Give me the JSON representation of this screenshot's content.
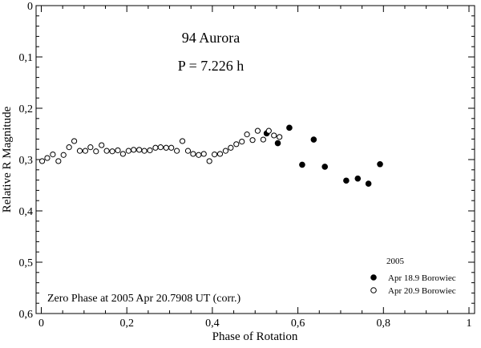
{
  "chart_data": {
    "type": "scatter",
    "annotations": {
      "object_name": "94 Aurora",
      "period": "P = 7.226 h",
      "zero_phase": "Zero Phase at 2005 Apr 20.7908 UT (corr.)"
    },
    "xlabel": "Phase of Rotation",
    "ylabel": "Relative R Magnitude",
    "xlim": [
      0,
      1
    ],
    "ylim": [
      0,
      0.6
    ],
    "y_inverted": true,
    "x_ticks": [
      {
        "value": 0,
        "label": "0"
      },
      {
        "value": 0.2,
        "label": "0,2"
      },
      {
        "value": 0.4,
        "label": "0,4"
      },
      {
        "value": 0.6,
        "label": "0,6"
      },
      {
        "value": 0.8,
        "label": "0,8"
      },
      {
        "value": 1,
        "label": "1"
      }
    ],
    "y_ticks": [
      {
        "value": 0,
        "label": "0"
      },
      {
        "value": 0.1,
        "label": "0,1"
      },
      {
        "value": 0.2,
        "label": "0,2"
      },
      {
        "value": 0.3,
        "label": "0,3"
      },
      {
        "value": 0.4,
        "label": "0,4"
      },
      {
        "value": 0.5,
        "label": "0,5"
      },
      {
        "value": 0.6,
        "label": "0,6"
      }
    ],
    "legend": {
      "title": "2005",
      "placement": "bottom-right"
    },
    "series": [
      {
        "name": "Apr 18.9 Borowiec",
        "marker": "filled-circle",
        "points": [
          [
            0.527,
            0.249
          ],
          [
            0.553,
            0.268
          ],
          [
            0.58,
            0.238
          ],
          [
            0.61,
            0.31
          ],
          [
            0.637,
            0.261
          ],
          [
            0.663,
            0.314
          ],
          [
            0.713,
            0.341
          ],
          [
            0.74,
            0.337
          ],
          [
            0.765,
            0.347
          ],
          [
            0.792,
            0.309
          ]
        ]
      },
      {
        "name": "Apr 20.9 Borowiec",
        "marker": "open-circle",
        "points": [
          [
            0.002,
            0.303
          ],
          [
            0.014,
            0.297
          ],
          [
            0.027,
            0.29
          ],
          [
            0.04,
            0.303
          ],
          [
            0.052,
            0.291
          ],
          [
            0.065,
            0.276
          ],
          [
            0.077,
            0.264
          ],
          [
            0.09,
            0.283
          ],
          [
            0.103,
            0.283
          ],
          [
            0.115,
            0.276
          ],
          [
            0.128,
            0.284
          ],
          [
            0.141,
            0.272
          ],
          [
            0.153,
            0.283
          ],
          [
            0.166,
            0.284
          ],
          [
            0.179,
            0.282
          ],
          [
            0.191,
            0.289
          ],
          [
            0.204,
            0.283
          ],
          [
            0.216,
            0.281
          ],
          [
            0.229,
            0.281
          ],
          [
            0.241,
            0.283
          ],
          [
            0.254,
            0.282
          ],
          [
            0.267,
            0.277
          ],
          [
            0.279,
            0.276
          ],
          [
            0.292,
            0.277
          ],
          [
            0.304,
            0.277
          ],
          [
            0.317,
            0.283
          ],
          [
            0.33,
            0.264
          ],
          [
            0.343,
            0.283
          ],
          [
            0.355,
            0.289
          ],
          [
            0.368,
            0.291
          ],
          [
            0.38,
            0.289
          ],
          [
            0.393,
            0.303
          ],
          [
            0.405,
            0.29
          ],
          [
            0.418,
            0.289
          ],
          [
            0.431,
            0.283
          ],
          [
            0.443,
            0.277
          ],
          [
            0.456,
            0.27
          ],
          [
            0.469,
            0.265
          ],
          [
            0.481,
            0.251
          ],
          [
            0.494,
            0.262
          ],
          [
            0.506,
            0.244
          ],
          [
            0.519,
            0.261
          ],
          [
            0.532,
            0.244
          ],
          [
            0.544,
            0.253
          ],
          [
            0.557,
            0.256
          ]
        ]
      }
    ]
  }
}
